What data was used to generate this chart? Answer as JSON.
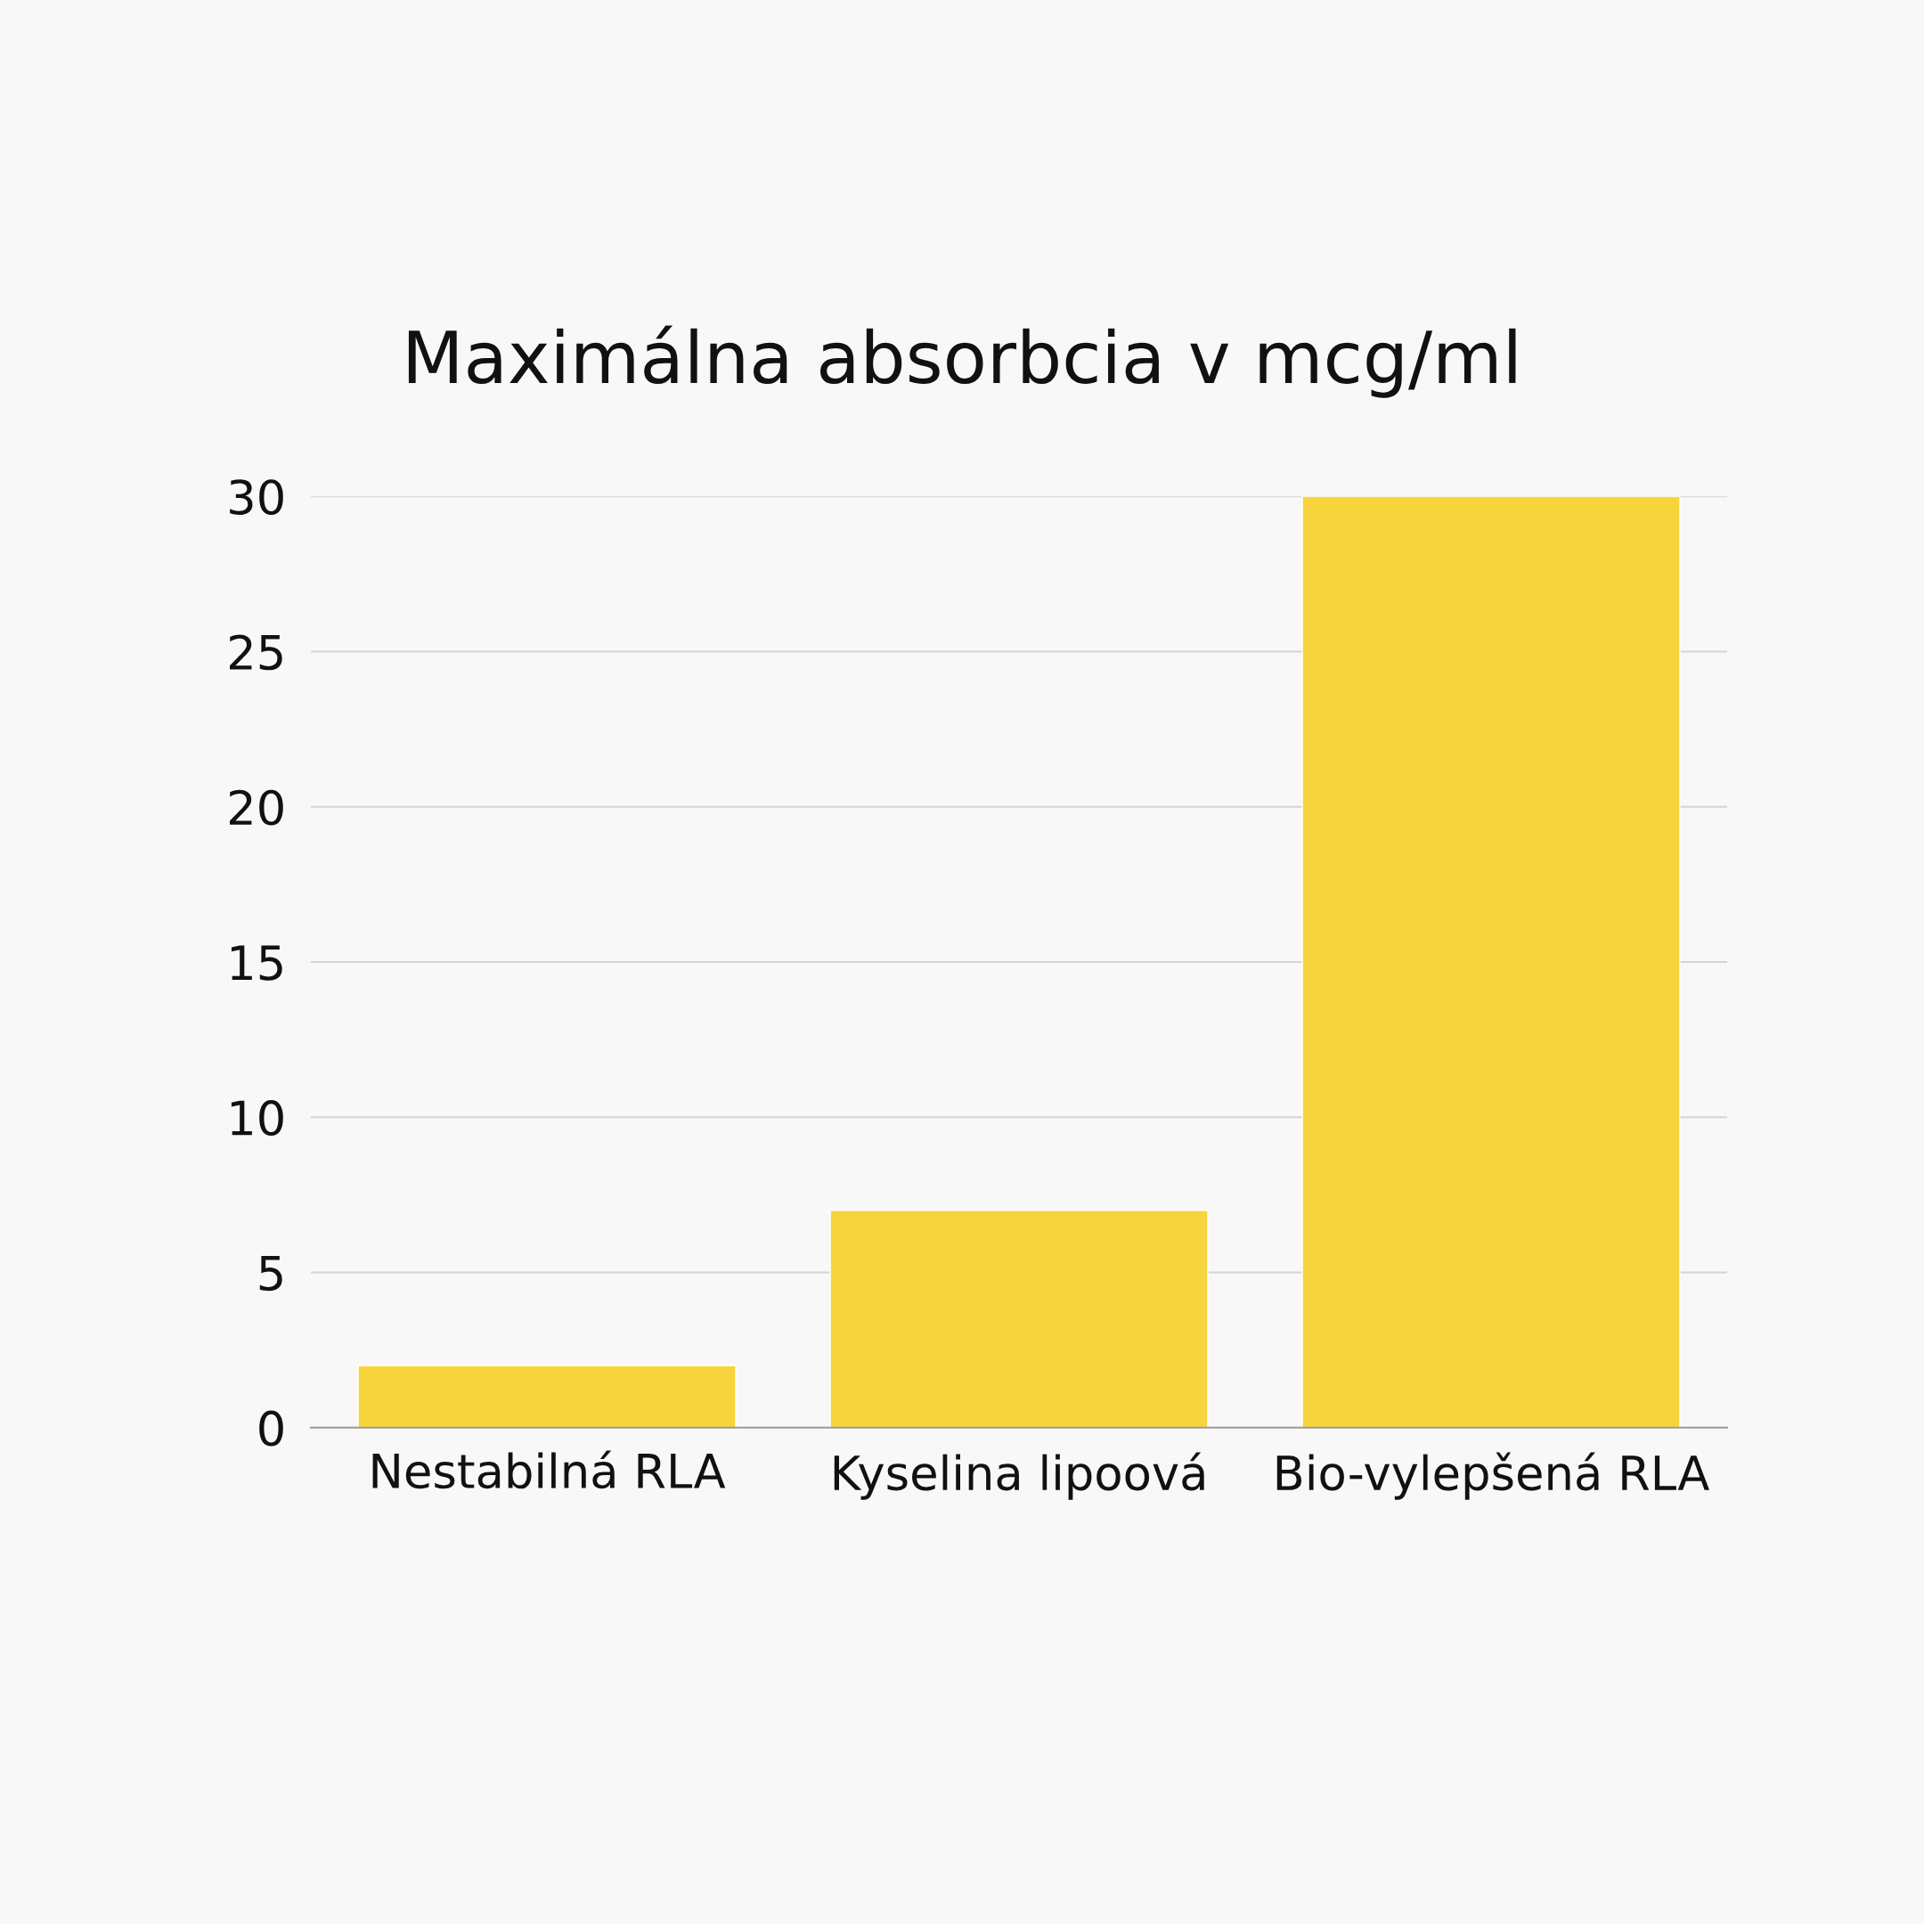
{
  "chart_data": {
    "type": "bar",
    "title": "Maximálna absorbcia v mcg/ml",
    "categories": [
      "Nestabilná RLA",
      "Kyselina lipoová",
      "Bio-vylepšená RLA"
    ],
    "values": [
      2,
      7,
      30
    ],
    "color": "#f8d43c",
    "ylim": [
      0,
      30
    ],
    "yticks": [
      0,
      5,
      10,
      15,
      20,
      25,
      30
    ],
    "grid": "y"
  }
}
